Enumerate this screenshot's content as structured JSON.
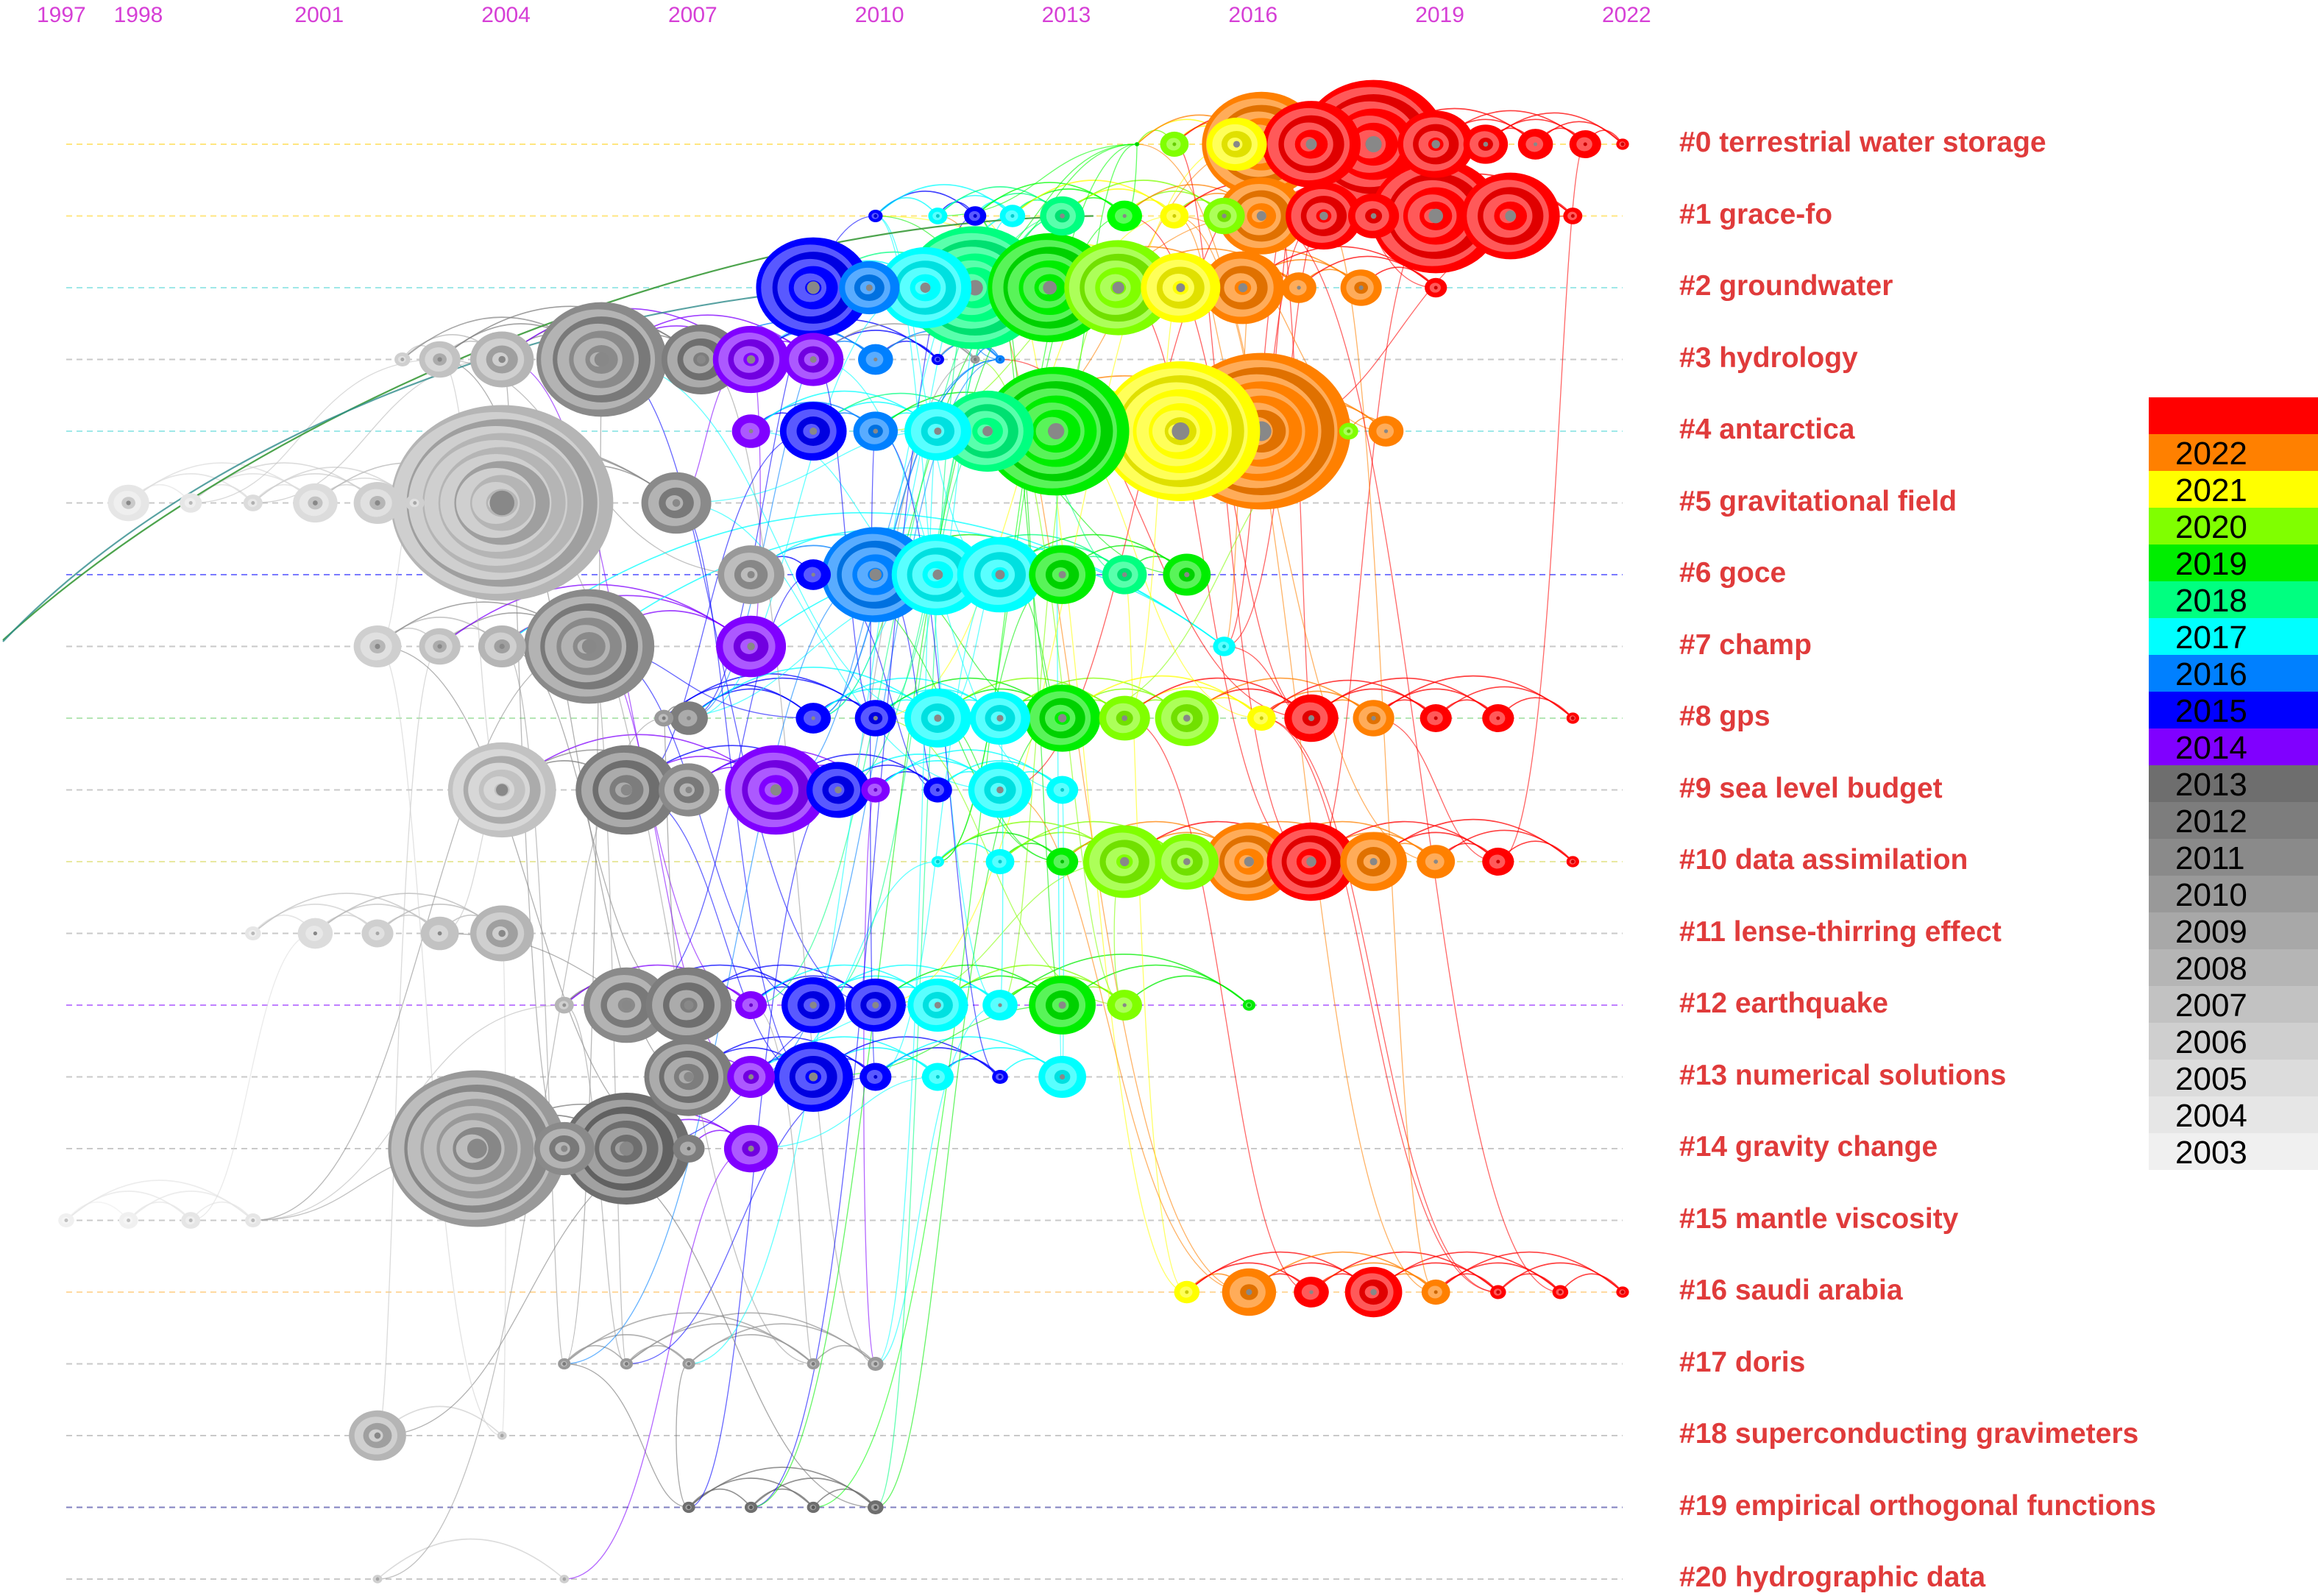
{
  "years": [
    "1997",
    "1998",
    "2001",
    "2004",
    "2007",
    "2010",
    "2013",
    "2016",
    "2019",
    "2022"
  ],
  "clusters": [
    {
      "id": 0,
      "label": "#0 terrestrial water storage"
    },
    {
      "id": 1,
      "label": "#1 grace-fo"
    },
    {
      "id": 2,
      "label": "#2 groundwater"
    },
    {
      "id": 3,
      "label": "#3 hydrology"
    },
    {
      "id": 4,
      "label": "#4 antarctica"
    },
    {
      "id": 5,
      "label": "#5 gravitational field"
    },
    {
      "id": 6,
      "label": "#6 goce"
    },
    {
      "id": 7,
      "label": "#7 champ"
    },
    {
      "id": 8,
      "label": "#8 gps"
    },
    {
      "id": 9,
      "label": "#9 sea level budget"
    },
    {
      "id": 10,
      "label": "#10 data assimilation"
    },
    {
      "id": 11,
      "label": "#11 lense-thirring effect"
    },
    {
      "id": 12,
      "label": "#12 earthquake"
    },
    {
      "id": 13,
      "label": "#13 numerical solutions"
    },
    {
      "id": 14,
      "label": "#14 gravity change"
    },
    {
      "id": 15,
      "label": "#15 mantle viscosity"
    },
    {
      "id": 16,
      "label": "#16 saudi arabia"
    },
    {
      "id": 17,
      "label": "#17 doris"
    },
    {
      "id": 18,
      "label": "#18 superconducting gravimeters"
    },
    {
      "id": 19,
      "label": "#19 empirical orthogonal functions"
    },
    {
      "id": 20,
      "label": "#20 hydrographic data"
    }
  ],
  "legend": [
    {
      "year": "",
      "color": "#ff0000"
    },
    {
      "year": "2022",
      "color": "#ff8000"
    },
    {
      "year": "2021",
      "color": "#ffff00"
    },
    {
      "year": "2020",
      "color": "#80ff00"
    },
    {
      "year": "2019",
      "color": "#00ee00"
    },
    {
      "year": "2018",
      "color": "#00ff80"
    },
    {
      "year": "2017",
      "color": "#00ffff"
    },
    {
      "year": "2016",
      "color": "#0080ff"
    },
    {
      "year": "2015",
      "color": "#0000ff"
    },
    {
      "year": "2014",
      "color": "#8000ff"
    },
    {
      "year": "2013",
      "color": "#6e6e6e"
    },
    {
      "year": "2012",
      "color": "#7d7d7d"
    },
    {
      "year": "2011",
      "color": "#8a8a8a"
    },
    {
      "year": "2010",
      "color": "#999999"
    },
    {
      "year": "2009",
      "color": "#a8a8a8"
    },
    {
      "year": "2008",
      "color": "#b5b5b5"
    },
    {
      "year": "2007",
      "color": "#c2c2c2"
    },
    {
      "year": "2006",
      "color": "#cfcfcf"
    },
    {
      "year": "2005",
      "color": "#dcdcdc"
    },
    {
      "year": "2004",
      "color": "#e6e6e6"
    },
    {
      "year": "2003",
      "color": "#f0f0f0"
    }
  ],
  "nodes": [
    {
      "c": 0,
      "year": 2014.2,
      "s": 3,
      "col": "#00ff00"
    },
    {
      "c": 0,
      "year": 2014.8,
      "s": 18,
      "col": "#80ff00"
    },
    {
      "c": 0,
      "year": 2015.8,
      "s": 38,
      "col": "#ffff00"
    },
    {
      "c": 0,
      "year": 2016.2,
      "s": 75,
      "col": "#ff8000"
    },
    {
      "c": 0,
      "year": 2017.0,
      "s": 62,
      "col": "#ff0000"
    },
    {
      "c": 0,
      "year": 2018.0,
      "s": 92,
      "col": "#ff0000"
    },
    {
      "c": 0,
      "year": 2019.0,
      "s": 48,
      "col": "#ff0000"
    },
    {
      "c": 0,
      "year": 2019.8,
      "s": 28,
      "col": "#ff0000"
    },
    {
      "c": 0,
      "year": 2020.6,
      "s": 22,
      "col": "#ff0000"
    },
    {
      "c": 0,
      "year": 2021.4,
      "s": 20,
      "col": "#ff0000"
    },
    {
      "c": 0,
      "year": 2022.0,
      "s": 8,
      "col": "#ff0000"
    },
    {
      "c": 1,
      "year": 2010.0,
      "s": 9,
      "col": "#0000ff"
    },
    {
      "c": 1,
      "year": 2011.0,
      "s": 12,
      "col": "#00ffff"
    },
    {
      "c": 1,
      "year": 2011.6,
      "s": 14,
      "col": "#0000ff"
    },
    {
      "c": 1,
      "year": 2012.2,
      "s": 16,
      "col": "#00ffff"
    },
    {
      "c": 1,
      "year": 2013.0,
      "s": 28,
      "col": "#00ff80"
    },
    {
      "c": 1,
      "year": 2014.0,
      "s": 22,
      "col": "#00ff00"
    },
    {
      "c": 1,
      "year": 2014.8,
      "s": 18,
      "col": "#ffff00"
    },
    {
      "c": 1,
      "year": 2015.6,
      "s": 26,
      "col": "#80ff00"
    },
    {
      "c": 1,
      "year": 2016.2,
      "s": 55,
      "col": "#ff8000"
    },
    {
      "c": 1,
      "year": 2017.2,
      "s": 48,
      "col": "#ff0000"
    },
    {
      "c": 1,
      "year": 2018.0,
      "s": 32,
      "col": "#ff0000"
    },
    {
      "c": 1,
      "year": 2019.0,
      "s": 82,
      "col": "#ff0000"
    },
    {
      "c": 1,
      "year": 2020.2,
      "s": 62,
      "col": "#ff0000"
    },
    {
      "c": 1,
      "year": 2021.2,
      "s": 12,
      "col": "#ff0000"
    },
    {
      "c": 2,
      "year": 2009.0,
      "s": 72,
      "col": "#0000ff"
    },
    {
      "c": 2,
      "year": 2009.9,
      "s": 38,
      "col": "#0080ff"
    },
    {
      "c": 2,
      "year": 2010.8,
      "s": 58,
      "col": "#00ffff"
    },
    {
      "c": 2,
      "year": 2011.6,
      "s": 88,
      "col": "#00ff80"
    },
    {
      "c": 2,
      "year": 2012.8,
      "s": 78,
      "col": "#00ee00"
    },
    {
      "c": 2,
      "year": 2013.9,
      "s": 68,
      "col": "#80ff00"
    },
    {
      "c": 2,
      "year": 2014.9,
      "s": 50,
      "col": "#ffff00"
    },
    {
      "c": 2,
      "year": 2015.9,
      "s": 52,
      "col": "#ff8000"
    },
    {
      "c": 2,
      "year": 2016.8,
      "s": 22,
      "col": "#ff8000"
    },
    {
      "c": 2,
      "year": 2017.8,
      "s": 26,
      "col": "#ff8000"
    },
    {
      "c": 2,
      "year": 2019.0,
      "s": 14,
      "col": "#ff0000"
    },
    {
      "c": 3,
      "year": 2002.4,
      "s": 10,
      "col": "#cfcfcf"
    },
    {
      "c": 3,
      "year": 2003.0,
      "s": 26,
      "col": "#c2c2c2"
    },
    {
      "c": 3,
      "year": 2004.0,
      "s": 40,
      "col": "#b5b5b5"
    },
    {
      "c": 3,
      "year": 2005.6,
      "s": 82,
      "col": "#8a8a8a"
    },
    {
      "c": 3,
      "year": 2007.2,
      "s": 50,
      "col": "#7d7d7d"
    },
    {
      "c": 3,
      "year": 2008.0,
      "s": 48,
      "col": "#8000ff"
    },
    {
      "c": 3,
      "year": 2009.0,
      "s": 38,
      "col": "#8000ff"
    },
    {
      "c": 3,
      "year": 2010.0,
      "s": 22,
      "col": "#0080ff"
    },
    {
      "c": 3,
      "year": 2011.0,
      "s": 8,
      "col": "#0000ff"
    },
    {
      "c": 3,
      "year": 2011.6,
      "s": 6,
      "col": "#999999"
    },
    {
      "c": 3,
      "year": 2012.0,
      "s": 6,
      "col": "#0080ff"
    },
    {
      "c": 4,
      "year": 2008.0,
      "s": 24,
      "col": "#8000ff"
    },
    {
      "c": 4,
      "year": 2009.0,
      "s": 42,
      "col": "#0000ff"
    },
    {
      "c": 4,
      "year": 2010.0,
      "s": 28,
      "col": "#0080ff"
    },
    {
      "c": 4,
      "year": 2011.0,
      "s": 42,
      "col": "#00ffff"
    },
    {
      "c": 4,
      "year": 2011.8,
      "s": 58,
      "col": "#00ff80"
    },
    {
      "c": 4,
      "year": 2012.9,
      "s": 92,
      "col": "#00ee00"
    },
    {
      "c": 4,
      "year": 2014.9,
      "s": 100,
      "col": "#ffff00"
    },
    {
      "c": 4,
      "year": 2016.2,
      "s": 112,
      "col": "#ff8000"
    },
    {
      "c": 4,
      "year": 2017.6,
      "s": 12,
      "col": "#80ff00"
    },
    {
      "c": 4,
      "year": 2018.2,
      "s": 22,
      "col": "#ff8000"
    },
    {
      "c": 5,
      "year": 1998.0,
      "s": 26,
      "col": "#e6e6e6"
    },
    {
      "c": 5,
      "year": 1999.0,
      "s": 14,
      "col": "#e6e6e6"
    },
    {
      "c": 5,
      "year": 2000.0,
      "s": 12,
      "col": "#dcdcdc"
    },
    {
      "c": 5,
      "year": 2001.0,
      "s": 28,
      "col": "#dcdcdc"
    },
    {
      "c": 5,
      "year": 2002.0,
      "s": 30,
      "col": "#cfcfcf"
    },
    {
      "c": 5,
      "year": 2002.6,
      "s": 12,
      "col": "#cfcfcf"
    },
    {
      "c": 5,
      "year": 2004.0,
      "s": 140,
      "col": "#b5b5b5"
    },
    {
      "c": 5,
      "year": 2006.8,
      "s": 44,
      "col": "#8a8a8a"
    },
    {
      "c": 6,
      "year": 2008.0,
      "s": 42,
      "col": "#999999"
    },
    {
      "c": 6,
      "year": 2009.0,
      "s": 22,
      "col": "#0000ff"
    },
    {
      "c": 6,
      "year": 2010.0,
      "s": 68,
      "col": "#0080ff"
    },
    {
      "c": 6,
      "year": 2011.0,
      "s": 58,
      "col": "#00ffff"
    },
    {
      "c": 6,
      "year": 2012.0,
      "s": 54,
      "col": "#00ffff"
    },
    {
      "c": 6,
      "year": 2013.0,
      "s": 42,
      "col": "#00ee00"
    },
    {
      "c": 6,
      "year": 2014.0,
      "s": 28,
      "col": "#00ff80"
    },
    {
      "c": 6,
      "year": 2015.0,
      "s": 30,
      "col": "#00ee00"
    },
    {
      "c": 7,
      "year": 2002.0,
      "s": 30,
      "col": "#cfcfcf"
    },
    {
      "c": 7,
      "year": 2003.0,
      "s": 26,
      "col": "#c2c2c2"
    },
    {
      "c": 7,
      "year": 2004.0,
      "s": 30,
      "col": "#b5b5b5"
    },
    {
      "c": 7,
      "year": 2005.4,
      "s": 82,
      "col": "#8a8a8a"
    },
    {
      "c": 7,
      "year": 2008.0,
      "s": 44,
      "col": "#8000ff"
    },
    {
      "c": 7,
      "year": 2015.6,
      "s": 14,
      "col": "#00ffff"
    },
    {
      "c": 8,
      "year": 2006.6,
      "s": 12,
      "col": "#999999"
    },
    {
      "c": 8,
      "year": 2007.0,
      "s": 24,
      "col": "#7d7d7d"
    },
    {
      "c": 8,
      "year": 2009.0,
      "s": 22,
      "col": "#0000ff"
    },
    {
      "c": 8,
      "year": 2010.0,
      "s": 26,
      "col": "#0000ff"
    },
    {
      "c": 8,
      "year": 2011.0,
      "s": 42,
      "col": "#00ffff"
    },
    {
      "c": 8,
      "year": 2012.0,
      "s": 38,
      "col": "#00ffff"
    },
    {
      "c": 8,
      "year": 2013.0,
      "s": 48,
      "col": "#00ee00"
    },
    {
      "c": 8,
      "year": 2014.0,
      "s": 32,
      "col": "#80ff00"
    },
    {
      "c": 8,
      "year": 2015.0,
      "s": 40,
      "col": "#80ff00"
    },
    {
      "c": 8,
      "year": 2016.2,
      "s": 18,
      "col": "#ffff00"
    },
    {
      "c": 8,
      "year": 2017.0,
      "s": 34,
      "col": "#ff0000"
    },
    {
      "c": 8,
      "year": 2018.0,
      "s": 26,
      "col": "#ff8000"
    },
    {
      "c": 8,
      "year": 2019.0,
      "s": 20,
      "col": "#ff0000"
    },
    {
      "c": 8,
      "year": 2020.0,
      "s": 20,
      "col": "#ff0000"
    },
    {
      "c": 8,
      "year": 2021.2,
      "s": 8,
      "col": "#ff0000"
    },
    {
      "c": 9,
      "year": 2004.0,
      "s": 68,
      "col": "#c2c2c2"
    },
    {
      "c": 9,
      "year": 2006.0,
      "s": 64,
      "col": "#7d7d7d"
    },
    {
      "c": 9,
      "year": 2007.0,
      "s": 38,
      "col": "#8a8a8a"
    },
    {
      "c": 9,
      "year": 2008.4,
      "s": 64,
      "col": "#8000ff"
    },
    {
      "c": 9,
      "year": 2009.4,
      "s": 40,
      "col": "#0000ff"
    },
    {
      "c": 9,
      "year": 2010.0,
      "s": 18,
      "col": "#8000ff"
    },
    {
      "c": 9,
      "year": 2011.0,
      "s": 18,
      "col": "#0000ff"
    },
    {
      "c": 9,
      "year": 2012.0,
      "s": 40,
      "col": "#00ffff"
    },
    {
      "c": 9,
      "year": 2013.0,
      "s": 20,
      "col": "#00ffff"
    },
    {
      "c": 10,
      "year": 2011.0,
      "s": 8,
      "col": "#00ffff"
    },
    {
      "c": 10,
      "year": 2012.0,
      "s": 18,
      "col": "#00ffff"
    },
    {
      "c": 10,
      "year": 2013.0,
      "s": 20,
      "col": "#00ee00"
    },
    {
      "c": 10,
      "year": 2014.0,
      "s": 52,
      "col": "#80ff00"
    },
    {
      "c": 10,
      "year": 2015.0,
      "s": 40,
      "col": "#80ff00"
    },
    {
      "c": 10,
      "year": 2016.0,
      "s": 56,
      "col": "#ff8000"
    },
    {
      "c": 10,
      "year": 2017.0,
      "s": 56,
      "col": "#ff0000"
    },
    {
      "c": 10,
      "year": 2018.0,
      "s": 42,
      "col": "#ff8000"
    },
    {
      "c": 10,
      "year": 2019.0,
      "s": 24,
      "col": "#ff8000"
    },
    {
      "c": 10,
      "year": 2020.0,
      "s": 20,
      "col": "#ff0000"
    },
    {
      "c": 10,
      "year": 2021.2,
      "s": 8,
      "col": "#ff0000"
    },
    {
      "c": 11,
      "year": 2000.0,
      "s": 10,
      "col": "#e6e6e6"
    },
    {
      "c": 11,
      "year": 2001.0,
      "s": 22,
      "col": "#dcdcdc"
    },
    {
      "c": 11,
      "year": 2002.0,
      "s": 20,
      "col": "#cfcfcf"
    },
    {
      "c": 11,
      "year": 2003.0,
      "s": 24,
      "col": "#c2c2c2"
    },
    {
      "c": 11,
      "year": 2004.0,
      "s": 40,
      "col": "#b5b5b5"
    },
    {
      "c": 12,
      "year": 2005.0,
      "s": 12,
      "col": "#b5b5b5"
    },
    {
      "c": 12,
      "year": 2006.0,
      "s": 54,
      "col": "#8a8a8a"
    },
    {
      "c": 12,
      "year": 2007.0,
      "s": 54,
      "col": "#7d7d7d"
    },
    {
      "c": 12,
      "year": 2008.0,
      "s": 20,
      "col": "#8000ff"
    },
    {
      "c": 12,
      "year": 2009.0,
      "s": 40,
      "col": "#0000ff"
    },
    {
      "c": 12,
      "year": 2010.0,
      "s": 38,
      "col": "#0000ff"
    },
    {
      "c": 12,
      "year": 2011.0,
      "s": 38,
      "col": "#00ffff"
    },
    {
      "c": 12,
      "year": 2012.0,
      "s": 22,
      "col": "#00ffff"
    },
    {
      "c": 12,
      "year": 2013.0,
      "s": 42,
      "col": "#00ee00"
    },
    {
      "c": 12,
      "year": 2014.0,
      "s": 22,
      "col": "#80ff00"
    },
    {
      "c": 12,
      "year": 2016.0,
      "s": 8,
      "col": "#00ee00"
    },
    {
      "c": 13,
      "year": 2007.0,
      "s": 56,
      "col": "#7d7d7d"
    },
    {
      "c": 13,
      "year": 2008.0,
      "s": 30,
      "col": "#8000ff"
    },
    {
      "c": 13,
      "year": 2009.0,
      "s": 50,
      "col": "#0000ff"
    },
    {
      "c": 13,
      "year": 2010.0,
      "s": 20,
      "col": "#0000ff"
    },
    {
      "c": 13,
      "year": 2011.0,
      "s": 20,
      "col": "#00ffff"
    },
    {
      "c": 13,
      "year": 2012.0,
      "s": 10,
      "col": "#0000ff"
    },
    {
      "c": 13,
      "year": 2013.0,
      "s": 30,
      "col": "#00ffff"
    },
    {
      "c": 14,
      "year": 2003.6,
      "s": 112,
      "col": "#999999"
    },
    {
      "c": 14,
      "year": 2005.0,
      "s": 38,
      "col": "#8a8a8a"
    },
    {
      "c": 14,
      "year": 2006.0,
      "s": 80,
      "col": "#6e6e6e"
    },
    {
      "c": 14,
      "year": 2007.0,
      "s": 20,
      "col": "#7d7d7d"
    },
    {
      "c": 14,
      "year": 2008.0,
      "s": 34,
      "col": "#8000ff"
    },
    {
      "c": 15,
      "year": 1997.0,
      "s": 10,
      "col": "#f0f0f0"
    },
    {
      "c": 15,
      "year": 1998.0,
      "s": 12,
      "col": "#f0f0f0"
    },
    {
      "c": 15,
      "year": 1999.0,
      "s": 12,
      "col": "#e6e6e6"
    },
    {
      "c": 15,
      "year": 2000.0,
      "s": 10,
      "col": "#e6e6e6"
    },
    {
      "c": 16,
      "year": 2015.0,
      "s": 16,
      "col": "#ffff00"
    },
    {
      "c": 16,
      "year": 2016.0,
      "s": 34,
      "col": "#ff8000"
    },
    {
      "c": 16,
      "year": 2017.0,
      "s": 22,
      "col": "#ff0000"
    },
    {
      "c": 16,
      "year": 2018.0,
      "s": 36,
      "col": "#ff0000"
    },
    {
      "c": 16,
      "year": 2019.0,
      "s": 18,
      "col": "#ff8000"
    },
    {
      "c": 16,
      "year": 2020.0,
      "s": 10,
      "col": "#ff0000"
    },
    {
      "c": 16,
      "year": 2021.0,
      "s": 10,
      "col": "#ff0000"
    },
    {
      "c": 16,
      "year": 2022.0,
      "s": 8,
      "col": "#ff0000"
    },
    {
      "c": 17,
      "year": 2005.0,
      "s": 8,
      "col": "#999999"
    },
    {
      "c": 17,
      "year": 2006.0,
      "s": 8,
      "col": "#999999"
    },
    {
      "c": 17,
      "year": 2007.0,
      "s": 8,
      "col": "#999999"
    },
    {
      "c": 17,
      "year": 2009.0,
      "s": 8,
      "col": "#999999"
    },
    {
      "c": 17,
      "year": 2010.0,
      "s": 10,
      "col": "#999999"
    },
    {
      "c": 18,
      "year": 2002.0,
      "s": 36,
      "col": "#b5b5b5"
    },
    {
      "c": 18,
      "year": 2004.0,
      "s": 6,
      "col": "#cfcfcf"
    },
    {
      "c": 19,
      "year": 2007.0,
      "s": 8,
      "col": "#6e6e6e"
    },
    {
      "c": 19,
      "year": 2008.0,
      "s": 8,
      "col": "#6e6e6e"
    },
    {
      "c": 19,
      "year": 2009.0,
      "s": 8,
      "col": "#6e6e6e"
    },
    {
      "c": 19,
      "year": 2010.0,
      "s": 10,
      "col": "#6e6e6e"
    },
    {
      "c": 20,
      "year": 2002.0,
      "s": 6,
      "col": "#cfcfcf"
    },
    {
      "c": 20,
      "year": 2005.0,
      "s": 6,
      "col": "#cfcfcf"
    }
  ]
}
